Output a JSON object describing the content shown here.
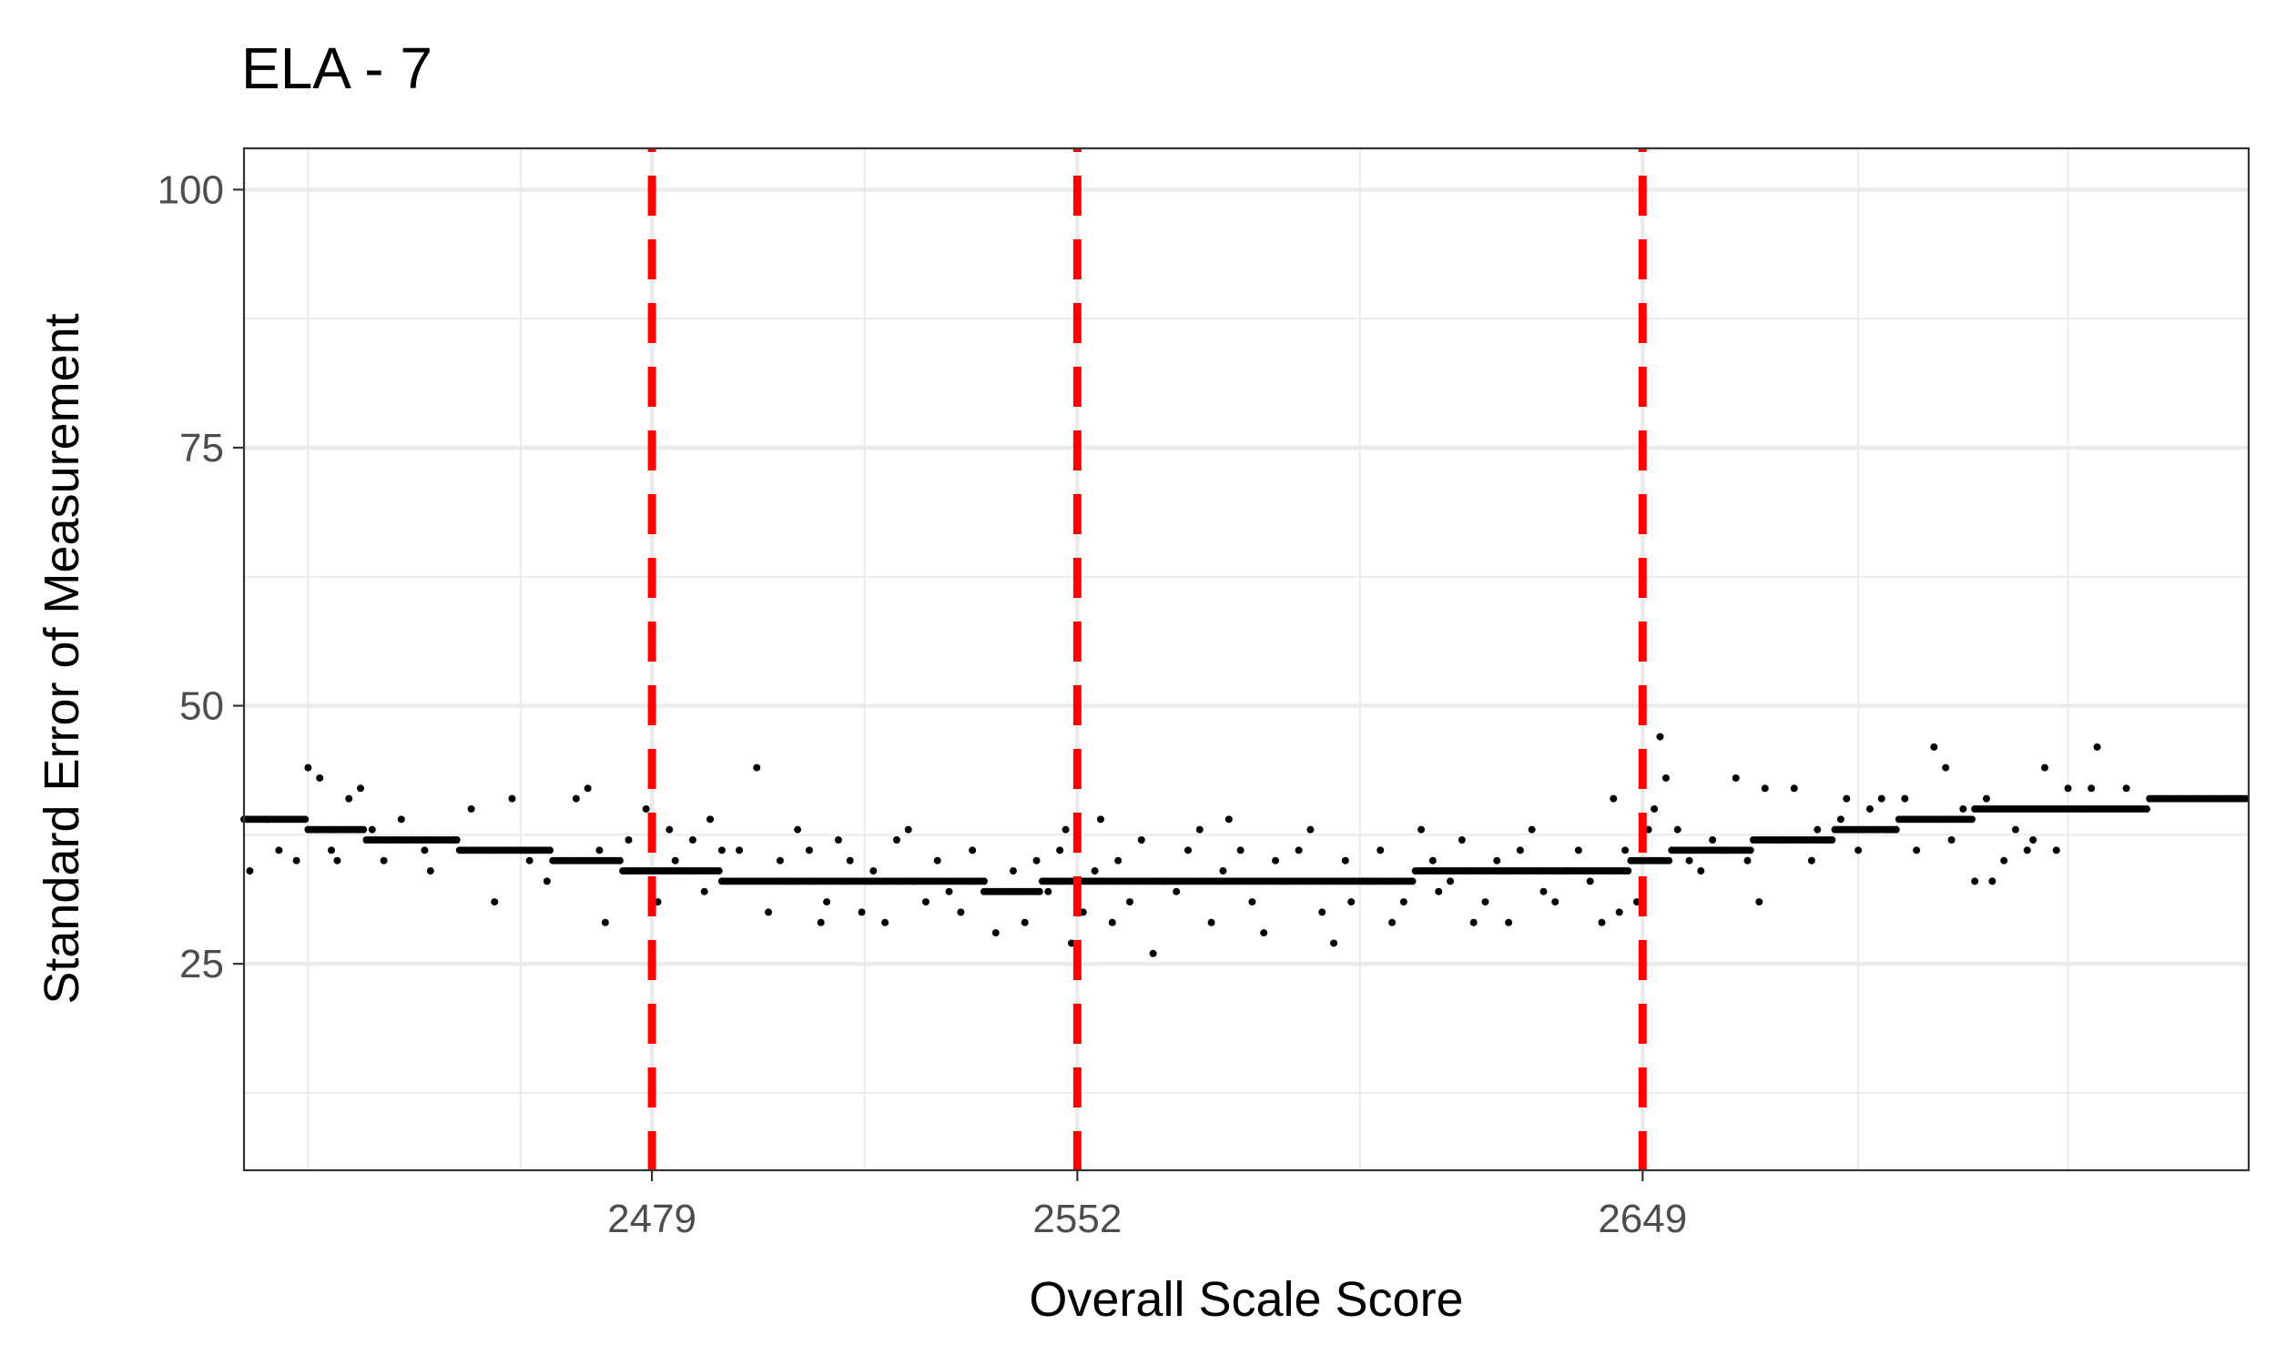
{
  "chart_data": {
    "type": "scatter",
    "title": "ELA - 7",
    "xlabel": "Overall Scale Score",
    "ylabel": "Standard Error of Measurement",
    "xlim": [
      2409,
      2753
    ],
    "ylim": [
      5,
      104
    ],
    "x_ticks": [
      2479,
      2552,
      2649
    ],
    "x_tick_labels": [
      "2479",
      "2552",
      "2649"
    ],
    "y_ticks": [
      25,
      50,
      75,
      100
    ],
    "y_tick_labels": [
      "25",
      "50",
      "75",
      "100"
    ],
    "x_minor_gridlines": [
      2420,
      2456.5,
      2515.5,
      2600.5,
      2686,
      2722
    ],
    "y_minor_gridlines": [
      12.5,
      37.5,
      62.5,
      87.5
    ],
    "grid": true,
    "legend": "none",
    "point_color": "#000000",
    "reference_lines": {
      "orientation": "vertical",
      "style": "dashed",
      "color": "#ff0000",
      "x": [
        2479,
        2552,
        2649
      ]
    },
    "series": [
      {
        "main_trend": [
          {
            "x_start": 2409,
            "x_end": 2420,
            "y": 39
          },
          {
            "x_start": 2420,
            "x_end": 2430,
            "y": 38
          },
          {
            "x_start": 2430,
            "x_end": 2446,
            "y": 37
          },
          {
            "x_start": 2446,
            "x_end": 2462,
            "y": 36
          },
          {
            "x_start": 2462,
            "x_end": 2474,
            "y": 35
          },
          {
            "x_start": 2474,
            "x_end": 2491,
            "y": 34
          },
          {
            "x_start": 2491,
            "x_end": 2536,
            "y": 33
          },
          {
            "x_start": 2536,
            "x_end": 2546,
            "y": 32
          },
          {
            "x_start": 2546,
            "x_end": 2610,
            "y": 33
          },
          {
            "x_start": 2610,
            "x_end": 2647,
            "y": 34
          },
          {
            "x_start": 2647,
            "x_end": 2654,
            "y": 35
          },
          {
            "x_start": 2654,
            "x_end": 2668,
            "y": 36
          },
          {
            "x_start": 2668,
            "x_end": 2682,
            "y": 37
          },
          {
            "x_start": 2682,
            "x_end": 2693,
            "y": 38
          },
          {
            "x_start": 2693,
            "x_end": 2706,
            "y": 39
          },
          {
            "x_start": 2706,
            "x_end": 2736,
            "y": 40
          },
          {
            "x_start": 2736,
            "x_end": 2753,
            "y": 41
          }
        ],
        "points": [
          [
            2410,
            34
          ],
          [
            2413,
            39
          ],
          [
            2415,
            36
          ],
          [
            2418,
            35
          ],
          [
            2420,
            44
          ],
          [
            2422,
            43
          ],
          [
            2424,
            36
          ],
          [
            2425,
            35
          ],
          [
            2427,
            41
          ],
          [
            2429,
            42
          ],
          [
            2431,
            38
          ],
          [
            2433,
            35
          ],
          [
            2436,
            39
          ],
          [
            2440,
            36
          ],
          [
            2441,
            34
          ],
          [
            2445,
            37
          ],
          [
            2448,
            40
          ],
          [
            2452,
            31
          ],
          [
            2455,
            41
          ],
          [
            2458,
            35
          ],
          [
            2461,
            33
          ],
          [
            2466,
            41
          ],
          [
            2468,
            42
          ],
          [
            2470,
            36
          ],
          [
            2471,
            29
          ],
          [
            2475,
            37
          ],
          [
            2476,
            34
          ],
          [
            2478,
            40
          ],
          [
            2480,
            31
          ],
          [
            2482,
            38
          ],
          [
            2483,
            35
          ],
          [
            2486,
            37
          ],
          [
            2488,
            32
          ],
          [
            2489,
            39
          ],
          [
            2491,
            36
          ],
          [
            2494,
            36
          ],
          [
            2497,
            44
          ],
          [
            2499,
            30
          ],
          [
            2501,
            35
          ],
          [
            2502,
            33
          ],
          [
            2504,
            38
          ],
          [
            2506,
            36
          ],
          [
            2508,
            29
          ],
          [
            2509,
            31
          ],
          [
            2511,
            37
          ],
          [
            2513,
            35
          ],
          [
            2515,
            30
          ],
          [
            2517,
            34
          ],
          [
            2519,
            29
          ],
          [
            2521,
            37
          ],
          [
            2523,
            38
          ],
          [
            2524,
            33
          ],
          [
            2526,
            31
          ],
          [
            2528,
            35
          ],
          [
            2530,
            32
          ],
          [
            2532,
            30
          ],
          [
            2534,
            36
          ],
          [
            2536,
            33
          ],
          [
            2538,
            28
          ],
          [
            2541,
            34
          ],
          [
            2543,
            29
          ],
          [
            2545,
            35
          ],
          [
            2547,
            32
          ],
          [
            2549,
            36
          ],
          [
            2550,
            38
          ],
          [
            2551,
            27
          ],
          [
            2553,
            30
          ],
          [
            2555,
            34
          ],
          [
            2556,
            39
          ],
          [
            2558,
            29
          ],
          [
            2559,
            35
          ],
          [
            2561,
            31
          ],
          [
            2563,
            37
          ],
          [
            2565,
            26
          ],
          [
            2567,
            33
          ],
          [
            2569,
            32
          ],
          [
            2571,
            36
          ],
          [
            2573,
            38
          ],
          [
            2575,
            29
          ],
          [
            2577,
            34
          ],
          [
            2578,
            39
          ],
          [
            2580,
            36
          ],
          [
            2582,
            31
          ],
          [
            2584,
            28
          ],
          [
            2586,
            35
          ],
          [
            2588,
            33
          ],
          [
            2590,
            36
          ],
          [
            2592,
            38
          ],
          [
            2594,
            30
          ],
          [
            2596,
            27
          ],
          [
            2598,
            35
          ],
          [
            2599,
            31
          ],
          [
            2602,
            33
          ],
          [
            2604,
            36
          ],
          [
            2606,
            29
          ],
          [
            2608,
            31
          ],
          [
            2611,
            38
          ],
          [
            2613,
            35
          ],
          [
            2614,
            32
          ],
          [
            2616,
            33
          ],
          [
            2618,
            37
          ],
          [
            2620,
            29
          ],
          [
            2622,
            31
          ],
          [
            2624,
            35
          ],
          [
            2626,
            29
          ],
          [
            2628,
            36
          ],
          [
            2630,
            38
          ],
          [
            2632,
            32
          ],
          [
            2634,
            31
          ],
          [
            2636,
            34
          ],
          [
            2638,
            36
          ],
          [
            2640,
            33
          ],
          [
            2642,
            29
          ],
          [
            2644,
            41
          ],
          [
            2645,
            30
          ],
          [
            2646,
            36
          ],
          [
            2648,
            31
          ],
          [
            2650,
            38
          ],
          [
            2651,
            40
          ],
          [
            2652,
            47
          ],
          [
            2653,
            43
          ],
          [
            2655,
            38
          ],
          [
            2657,
            35
          ],
          [
            2659,
            34
          ],
          [
            2661,
            37
          ],
          [
            2663,
            36
          ],
          [
            2665,
            43
          ],
          [
            2667,
            35
          ],
          [
            2669,
            31
          ],
          [
            2670,
            42
          ],
          [
            2673,
            37
          ],
          [
            2675,
            42
          ],
          [
            2678,
            35
          ],
          [
            2679,
            38
          ],
          [
            2681,
            37
          ],
          [
            2683,
            39
          ],
          [
            2684,
            41
          ],
          [
            2686,
            36
          ],
          [
            2688,
            40
          ],
          [
            2690,
            41
          ],
          [
            2692,
            38
          ],
          [
            2694,
            41
          ],
          [
            2696,
            36
          ],
          [
            2699,
            46
          ],
          [
            2701,
            44
          ],
          [
            2702,
            37
          ],
          [
            2704,
            40
          ],
          [
            2706,
            33
          ],
          [
            2708,
            41
          ],
          [
            2709,
            33
          ],
          [
            2711,
            35
          ],
          [
            2713,
            38
          ],
          [
            2715,
            36
          ],
          [
            2716,
            37
          ],
          [
            2718,
            44
          ],
          [
            2720,
            36
          ],
          [
            2722,
            42
          ],
          [
            2726,
            42
          ],
          [
            2727,
            46
          ],
          [
            2732,
            42
          ]
        ]
      }
    ]
  }
}
